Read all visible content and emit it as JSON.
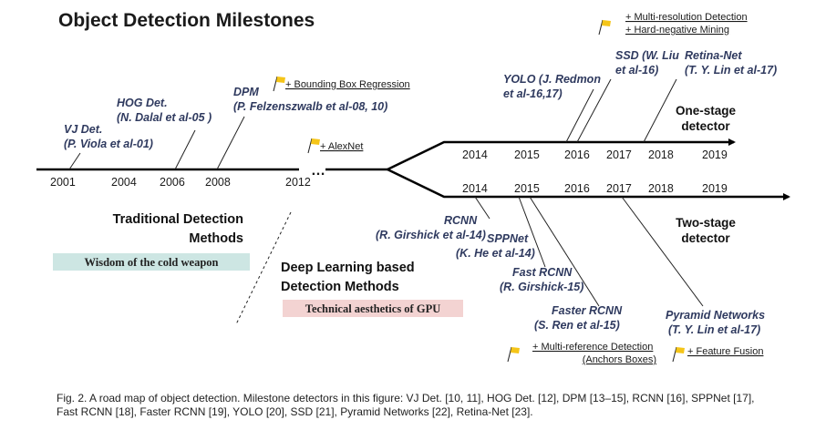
{
  "title": "Object Detection Milestones",
  "traditional": {
    "years": [
      "2001",
      "2004",
      "2006",
      "2008",
      "2012"
    ],
    "ellipsis": "…",
    "milestones": [
      {
        "name": "VJ Det.",
        "author": "(P. Viola et al-01)"
      },
      {
        "name": "HOG Det.",
        "author": "(N. Dalal et al-05 )"
      },
      {
        "name": "DPM",
        "author": "(P. Felzenszwalb et al-08, 10)"
      }
    ],
    "group_label": [
      "Traditional Detection",
      "Methods"
    ],
    "badge": "Wisdom of the cold weapon",
    "badge_color": "#cde6e3"
  },
  "deep": {
    "group_label": [
      "Deep Learning based",
      "Detection Methods"
    ],
    "badge": "Technical aesthetics of GPU",
    "badge_color": "#f3d3d2"
  },
  "one_stage": {
    "years": [
      "2014",
      "2015",
      "2016",
      "2017",
      "2018",
      "2019"
    ],
    "label": [
      "One-stage",
      "detector"
    ],
    "milestones": [
      {
        "name": "YOLO (J. Redmon",
        "author": "et al-16,17)"
      },
      {
        "name": "SSD (W. Liu",
        "author": "et al-16)"
      },
      {
        "name": "Retina-Net",
        "author": "(T. Y. Lin et al-17)"
      }
    ]
  },
  "two_stage": {
    "years": [
      "2014",
      "2015",
      "2016",
      "2017",
      "2018",
      "2019"
    ],
    "label": [
      "Two-stage",
      "detector"
    ],
    "milestones": [
      {
        "name": "RCNN",
        "author": "(R. Girshick et al-14)"
      },
      {
        "name": "SPPNet",
        "author": "(K. He et al-14)"
      },
      {
        "name": "Fast RCNN",
        "author": "(R. Girshick-15)"
      },
      {
        "name": "Faster RCNN",
        "author": "(S. Ren et al-15)"
      },
      {
        "name": "Pyramid Networks",
        "author": "(T. Y. Lin et al-17)"
      }
    ]
  },
  "notes": {
    "bbox_regression": "+ Bounding Box Regression",
    "alexnet": "+ AlexNet",
    "multi_resolution": "+ Multi-resolution Detection",
    "hard_negative": "+ Hard-negative Mining",
    "multi_reference": "+ Multi-reference Detection",
    "anchors": "(Anchors Boxes)",
    "feature_fusion": "+ Feature Fusion"
  },
  "flag_color": "#f5c518",
  "caption": {
    "line1": "Fig. 2.  A road map of object detection. Milestone detectors in this figure: VJ Det. [10, 11], HOG Det. [12], DPM [13–15], RCNN [16], SPPNet [17],",
    "line2": "Fast RCNN [18], Faster RCNN [19], YOLO [20], SSD [21], Pyramid Networks [22], Retina-Net [23]."
  }
}
